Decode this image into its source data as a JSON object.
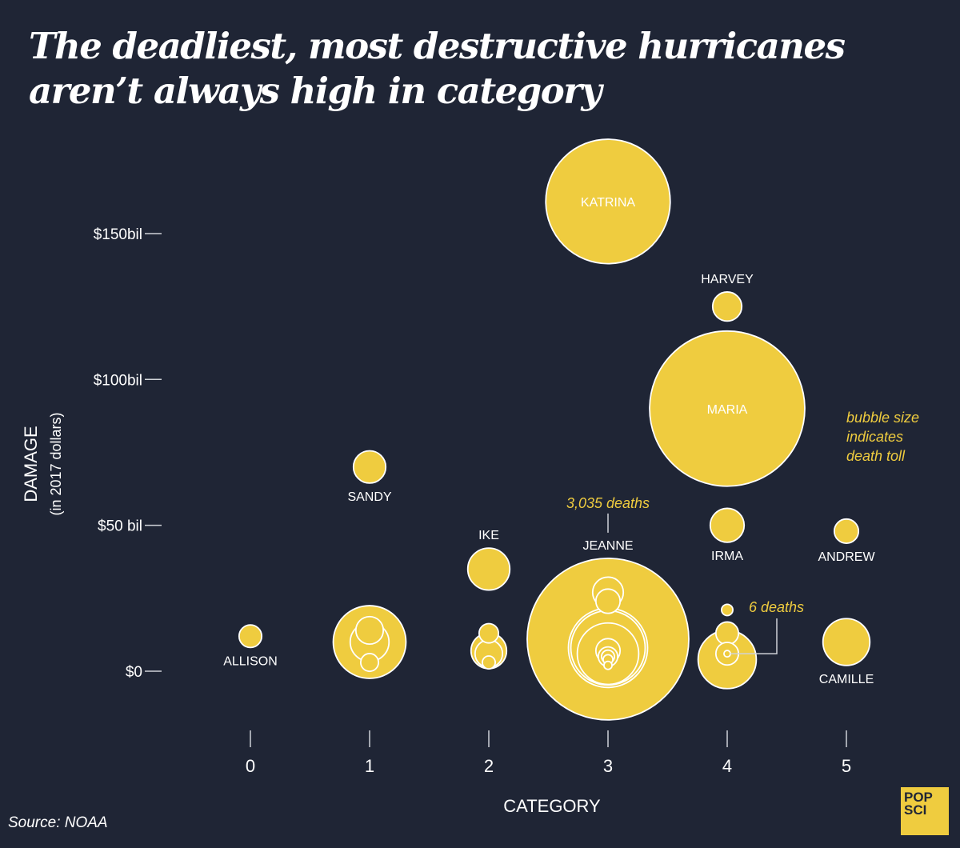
{
  "title": "The deadliest, most destructive hurricanes aren’t always high in category",
  "source": "Source: NOAA",
  "logo": {
    "line1": "POP",
    "line2": "SCI"
  },
  "colors": {
    "background": "#1f2535",
    "bubble": "#efcc3f",
    "stroke": "#ffffff",
    "text": "#ffffff",
    "accent_text": "#efcc3f"
  },
  "chart_data": {
    "type": "scatter",
    "subtype": "bubble",
    "title": "The deadliest, most destructive hurricanes aren’t always high in category",
    "xlabel": "CATEGORY",
    "ylabel": "DAMAGE",
    "ylabel_sub": "(in 2017 dollars)",
    "x_ticks": [
      "0",
      "1",
      "2",
      "3",
      "4",
      "5"
    ],
    "xlim": [
      0,
      5
    ],
    "y_ticks": [
      {
        "value": 0,
        "label": "$0"
      },
      {
        "value": 50,
        "label": "$50 bil"
      },
      {
        "value": 100,
        "label": "$100bil"
      },
      {
        "value": 150,
        "label": "$150bil"
      }
    ],
    "ylim": [
      0,
      150
    ],
    "y_unit": "billion USD (2017)",
    "size_encodes": "death toll",
    "legend_note": [
      "bubble size",
      "indicates",
      "death toll"
    ],
    "annotations": [
      {
        "text": "3,035 deaths",
        "target": "JEANNE"
      },
      {
        "text": "6 deaths",
        "target": "category-4 smallest bubble"
      }
    ],
    "labeled_points": [
      {
        "name": "KATRINA",
        "category": 3,
        "damage": 161,
        "size_rel": 0.77,
        "label_pos": "inside"
      },
      {
        "name": "HARVEY",
        "category": 4,
        "damage": 125,
        "size_rel": 0.18,
        "label_pos": "above"
      },
      {
        "name": "MARIA",
        "category": 4,
        "damage": 90,
        "size_rel": 0.96,
        "label_pos": "inside"
      },
      {
        "name": "SANDY",
        "category": 1,
        "damage": 70,
        "size_rel": 0.2,
        "label_pos": "below"
      },
      {
        "name": "IRMA",
        "category": 4,
        "damage": 50,
        "size_rel": 0.21,
        "label_pos": "below"
      },
      {
        "name": "ANDREW",
        "category": 5,
        "damage": 48,
        "size_rel": 0.15,
        "label_pos": "below"
      },
      {
        "name": "IKE",
        "category": 2,
        "damage": 35,
        "size_rel": 0.26,
        "label_pos": "above"
      },
      {
        "name": "ALLISON",
        "category": 0,
        "damage": 12,
        "size_rel": 0.14,
        "label_pos": "below"
      },
      {
        "name": "CAMILLE",
        "category": 5,
        "damage": 10,
        "size_rel": 0.29,
        "label_pos": "below"
      },
      {
        "name": "JEANNE",
        "category": 3,
        "damage": 11,
        "size_rel": 1.0,
        "label_pos": "above",
        "deaths": 3035
      }
    ],
    "unlabeled_points": [
      {
        "category": 1,
        "damage": 10,
        "size_rel": 0.45
      },
      {
        "category": 1,
        "damage": 14,
        "size_rel": 0.17
      },
      {
        "category": 1,
        "damage": 10,
        "size_rel": 0.24
      },
      {
        "category": 1,
        "damage": 3,
        "size_rel": 0.11
      },
      {
        "category": 2,
        "damage": 13,
        "size_rel": 0.12
      },
      {
        "category": 2,
        "damage": 7,
        "size_rel": 0.22
      },
      {
        "category": 2,
        "damage": 6,
        "size_rel": 0.17
      },
      {
        "category": 2,
        "damage": 3,
        "size_rel": 0.08
      },
      {
        "category": 3,
        "damage": 27,
        "size_rel": 0.19
      },
      {
        "category": 3,
        "damage": 24,
        "size_rel": 0.15
      },
      {
        "category": 3,
        "damage": 8,
        "size_rel": 0.49
      },
      {
        "category": 3,
        "damage": 8,
        "size_rel": 0.46
      },
      {
        "category": 3,
        "damage": 6,
        "size_rel": 0.38
      },
      {
        "category": 3,
        "damage": 7,
        "size_rel": 0.15
      },
      {
        "category": 3,
        "damage": 5,
        "size_rel": 0.12
      },
      {
        "category": 3,
        "damage": 5,
        "size_rel": 0.08
      },
      {
        "category": 3,
        "damage": 4,
        "size_rel": 0.06
      },
      {
        "category": 3,
        "damage": 2,
        "size_rel": 0.05
      },
      {
        "category": 4,
        "damage": 21,
        "size_rel": 0.07
      },
      {
        "category": 4,
        "damage": 13,
        "size_rel": 0.14
      },
      {
        "category": 4,
        "damage": 4,
        "size_rel": 0.36
      },
      {
        "category": 4,
        "damage": 6,
        "size_rel": 0.14
      },
      {
        "category": 4,
        "damage": 6,
        "size_rel": 0.04,
        "deaths": 6
      }
    ]
  }
}
